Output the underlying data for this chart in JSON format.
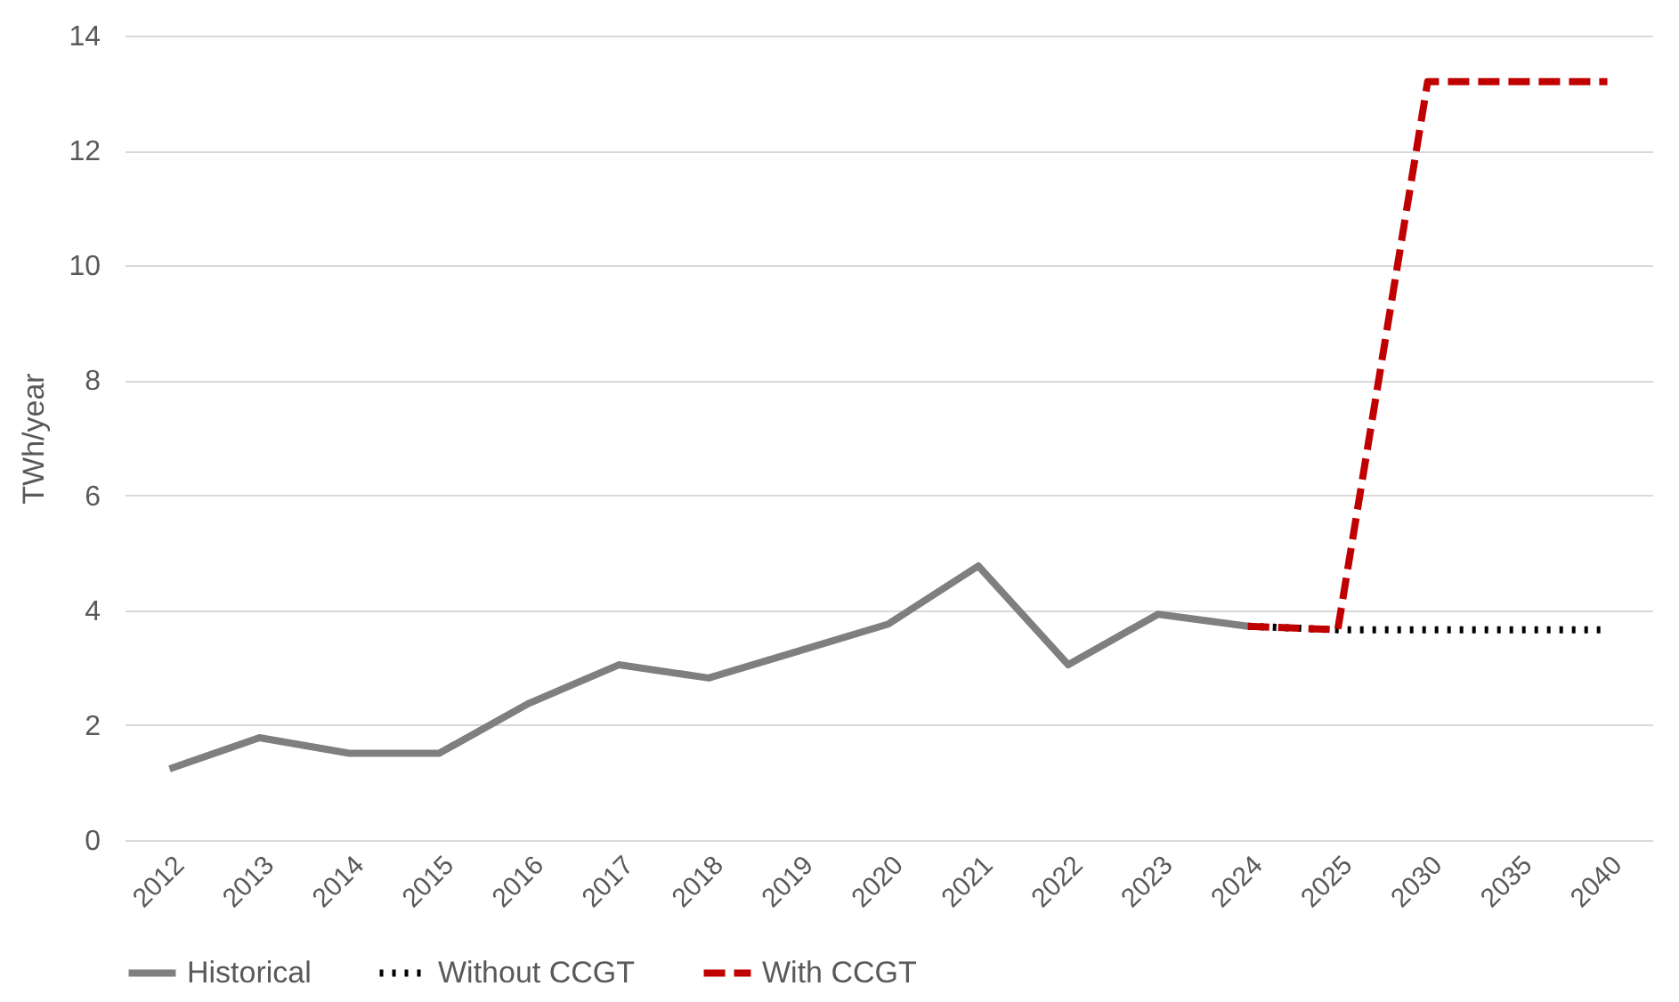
{
  "chart_data": {
    "type": "line",
    "ylabel": "TWh/year",
    "categories": [
      "2012",
      "2013",
      "2014",
      "2015",
      "2016",
      "2017",
      "2018",
      "2019",
      "2020",
      "2021",
      "2022",
      "2023",
      "2024",
      "2025",
      "2030",
      "2035",
      "2040"
    ],
    "series": [
      {
        "name": "Historical",
        "color": "#7f7f7f",
        "line_style": "solid",
        "values": [
          1.24,
          1.78,
          1.51,
          1.51,
          2.38,
          3.05,
          2.82,
          3.29,
          3.76,
          4.77,
          3.05,
          3.93,
          3.72,
          null,
          null,
          null,
          null
        ]
      },
      {
        "name": "Without CCGT",
        "color": "#000000",
        "line_style": "dotted",
        "values": [
          null,
          null,
          null,
          null,
          null,
          null,
          null,
          null,
          null,
          null,
          null,
          null,
          3.72,
          3.66,
          3.66,
          3.66,
          3.66
        ]
      },
      {
        "name": "With CCGT",
        "color": "#c00000",
        "line_style": "dashed",
        "values": [
          null,
          null,
          null,
          null,
          null,
          null,
          null,
          null,
          null,
          null,
          null,
          null,
          3.72,
          3.66,
          13.2,
          13.2,
          13.2
        ]
      }
    ],
    "ylim": [
      0,
      14
    ],
    "yticks": [
      0,
      2,
      4,
      6,
      8,
      10,
      12,
      14
    ],
    "grid": "y",
    "legend": "bottom",
    "marker": "none"
  }
}
